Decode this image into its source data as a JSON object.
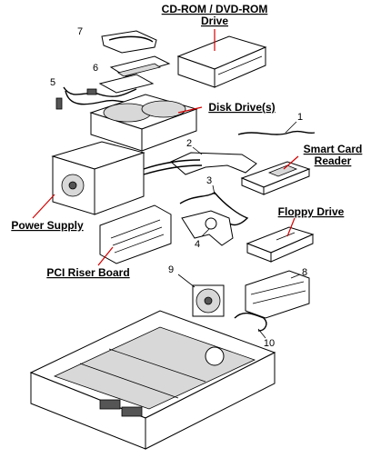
{
  "labels": {
    "cdrom": [
      "CD-ROM / DVD-ROM",
      "Drive"
    ],
    "disk_drive": "Disk Drive(s)",
    "smart_card_reader": [
      "Smart Card",
      "Reader"
    ],
    "floppy_drive": "Floppy Drive",
    "power_supply": "Power Supply",
    "pci_riser_board": "PCI Riser Board"
  },
  "callouts": [
    "1",
    "2",
    "3",
    "4",
    "5",
    "6",
    "7",
    "8",
    "9",
    "10"
  ]
}
